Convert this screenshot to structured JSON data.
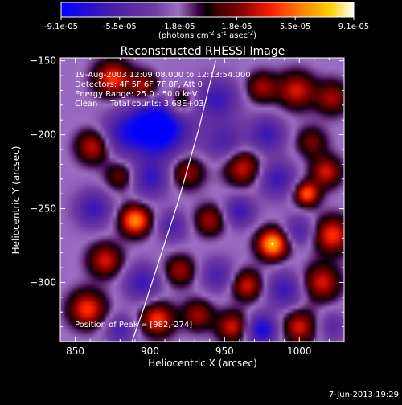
{
  "colorbar": {
    "tick_labels": [
      "-9.1e-05",
      "-5.5e-05",
      "-1.8e-05",
      "1.8e-05",
      "5.5e-05",
      "9.1e-05"
    ],
    "unit_label": "(photons cm",
    "unit_sup1": "-2",
    "unit_mid": " s",
    "unit_sup2": "-1",
    "unit_mid2": " asec",
    "unit_sup3": "-2",
    "unit_end": ")"
  },
  "timestamp": "7-Jun-2013 19:29",
  "chart_data": {
    "type": "heatmap",
    "title": "Reconstructed RHESSI Image",
    "xlabel": "Heliocentric X (arcsec)",
    "ylabel": "Heliocentric Y (arcsec)",
    "xlim": [
      840,
      1030
    ],
    "ylim": [
      -340,
      -148
    ],
    "xticks": [
      850,
      900,
      950,
      1000
    ],
    "yticks": [
      -150,
      -200,
      -250,
      -300
    ],
    "zlim": [
      -9.1e-05,
      9.1e-05
    ],
    "annotations": [
      "19-Aug-2003 12:09:08.000 to 12:13:54.000",
      "Detectors: 4F 5F 6F 7F 8F, Att 0",
      "Energy Range: 25.0 - 50.0 keV",
      "Clean     Total counts: 3.68E+03"
    ],
    "peak_label": "Position of Peak = [982,-274]",
    "peak": [
      982,
      -274
    ],
    "limb_arc": [
      [
        888,
        -340
      ],
      [
        895,
        -320
      ],
      [
        903,
        -295
      ],
      [
        911,
        -270
      ],
      [
        919,
        -245
      ],
      [
        926,
        -220
      ],
      [
        933,
        -195
      ],
      [
        939,
        -170
      ],
      [
        944,
        -150
      ]
    ],
    "blobs": [
      {
        "x": 875,
        "y": -162,
        "w": 0.7,
        "r": 12
      },
      {
        "x": 896,
        "y": -168,
        "w": 0.6,
        "r": 10
      },
      {
        "x": 920,
        "y": -178,
        "w": 0.5,
        "r": 10
      },
      {
        "x": 945,
        "y": -176,
        "w": -0.5,
        "r": 14
      },
      {
        "x": 975,
        "y": -168,
        "w": 0.5,
        "r": 10
      },
      {
        "x": 998,
        "y": -170,
        "w": 0.6,
        "r": 12
      },
      {
        "x": 1022,
        "y": -175,
        "w": 0.5,
        "r": 11
      },
      {
        "x": 905,
        "y": -195,
        "w": -1.0,
        "r": 20
      },
      {
        "x": 880,
        "y": -200,
        "w": -0.4,
        "r": 14
      },
      {
        "x": 862,
        "y": -208,
        "w": 0.6,
        "r": 11
      },
      {
        "x": 950,
        "y": -205,
        "w": -0.4,
        "r": 13
      },
      {
        "x": 978,
        "y": -200,
        "w": -0.5,
        "r": 12
      },
      {
        "x": 1008,
        "y": -205,
        "w": 0.4,
        "r": 10
      },
      {
        "x": 1018,
        "y": -225,
        "w": 0.6,
        "r": 10
      },
      {
        "x": 1005,
        "y": -240,
        "w": 0.8,
        "r": 8
      },
      {
        "x": 985,
        "y": -230,
        "w": -0.5,
        "r": 12
      },
      {
        "x": 962,
        "y": -222,
        "w": 0.6,
        "r": 12
      },
      {
        "x": 925,
        "y": -225,
        "w": 0.5,
        "r": 11
      },
      {
        "x": 900,
        "y": -230,
        "w": -0.5,
        "r": 12
      },
      {
        "x": 880,
        "y": -228,
        "w": 0.4,
        "r": 10
      },
      {
        "x": 862,
        "y": -250,
        "w": -0.5,
        "r": 12
      },
      {
        "x": 890,
        "y": -258,
        "w": 0.9,
        "r": 10
      },
      {
        "x": 915,
        "y": -262,
        "w": -0.4,
        "r": 10
      },
      {
        "x": 940,
        "y": -258,
        "w": 0.5,
        "r": 10
      },
      {
        "x": 960,
        "y": -252,
        "w": -0.5,
        "r": 10
      },
      {
        "x": 982,
        "y": -274,
        "w": 1.0,
        "r": 10
      },
      {
        "x": 1000,
        "y": -265,
        "w": -0.4,
        "r": 10
      },
      {
        "x": 1022,
        "y": -268,
        "w": 0.7,
        "r": 12
      },
      {
        "x": 1015,
        "y": -300,
        "w": 0.6,
        "r": 12
      },
      {
        "x": 870,
        "y": -285,
        "w": 0.6,
        "r": 11
      },
      {
        "x": 895,
        "y": -300,
        "w": -0.5,
        "r": 12
      },
      {
        "x": 920,
        "y": -292,
        "w": 0.5,
        "r": 10
      },
      {
        "x": 945,
        "y": -295,
        "w": -0.4,
        "r": 11
      },
      {
        "x": 965,
        "y": -302,
        "w": 0.6,
        "r": 10
      },
      {
        "x": 990,
        "y": -305,
        "w": -0.5,
        "r": 12
      },
      {
        "x": 858,
        "y": -318,
        "w": 0.7,
        "r": 12
      },
      {
        "x": 880,
        "y": -332,
        "w": -0.4,
        "r": 10
      },
      {
        "x": 905,
        "y": -325,
        "w": 0.7,
        "r": 11
      },
      {
        "x": 932,
        "y": -322,
        "w": 0.5,
        "r": 10
      },
      {
        "x": 955,
        "y": -330,
        "w": 0.6,
        "r": 10
      },
      {
        "x": 975,
        "y": -332,
        "w": -0.7,
        "r": 10
      },
      {
        "x": 1000,
        "y": -330,
        "w": 0.6,
        "r": 11
      },
      {
        "x": 1022,
        "y": -330,
        "w": -0.3,
        "r": 10
      }
    ]
  }
}
